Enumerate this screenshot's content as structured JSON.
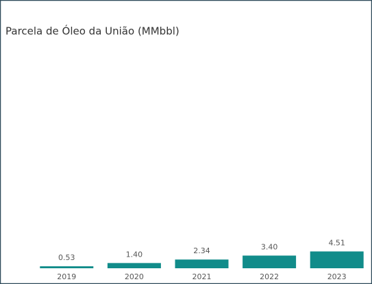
{
  "chart_data": {
    "type": "bar",
    "title": "Parcela de Óleo da União (MMbbl)",
    "categories": [
      "2019",
      "2020",
      "2021",
      "2022",
      "2023"
    ],
    "values": [
      0.53,
      1.4,
      2.34,
      3.4,
      4.51
    ],
    "value_labels": [
      "0.53",
      "1.40",
      "2.34",
      "3.40",
      "4.51"
    ],
    "color": "#118c8a",
    "ylim": [
      0,
      60
    ]
  }
}
